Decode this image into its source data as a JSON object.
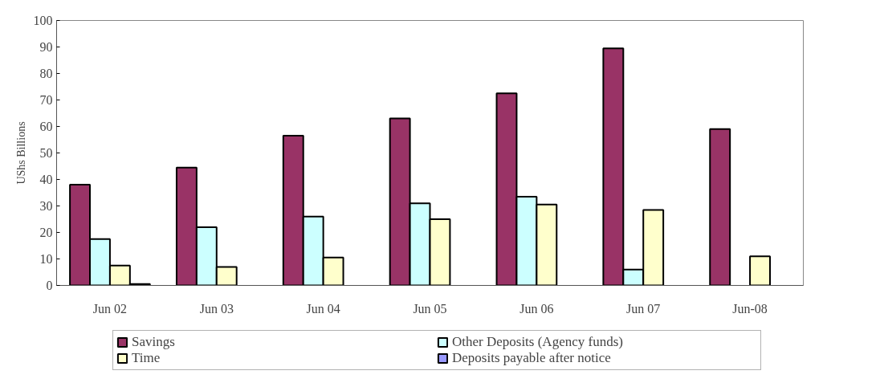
{
  "chart_data": {
    "type": "bar",
    "ylabel": "UShs Billions",
    "categories": [
      "Jun 02",
      "Jun 03",
      "Jun 04",
      "Jun 05",
      "Jun 06",
      "Jun 07",
      "Jun-08"
    ],
    "series": [
      {
        "name": "Savings",
        "color": "#993366",
        "values": [
          38,
          44.5,
          56.5,
          63,
          72.5,
          89.5,
          59
        ]
      },
      {
        "name": "Other Deposits (Agency funds)",
        "color": "#ccffff",
        "values": [
          17.5,
          22,
          26,
          31,
          33.5,
          6,
          null
        ]
      },
      {
        "name": "Time",
        "color": "#ffffcc",
        "values": [
          7.5,
          7,
          10.5,
          25,
          30.5,
          28.5,
          11
        ]
      },
      {
        "name": "Deposits payable after notice",
        "color": "#9999ff",
        "values": [
          0.5,
          null,
          null,
          null,
          null,
          null,
          null
        ]
      }
    ],
    "ylim": [
      0,
      100
    ],
    "yticks": [
      0,
      10,
      20,
      30,
      40,
      50,
      60,
      70,
      80,
      90,
      100
    ],
    "grid": false,
    "legend": "bottom"
  }
}
